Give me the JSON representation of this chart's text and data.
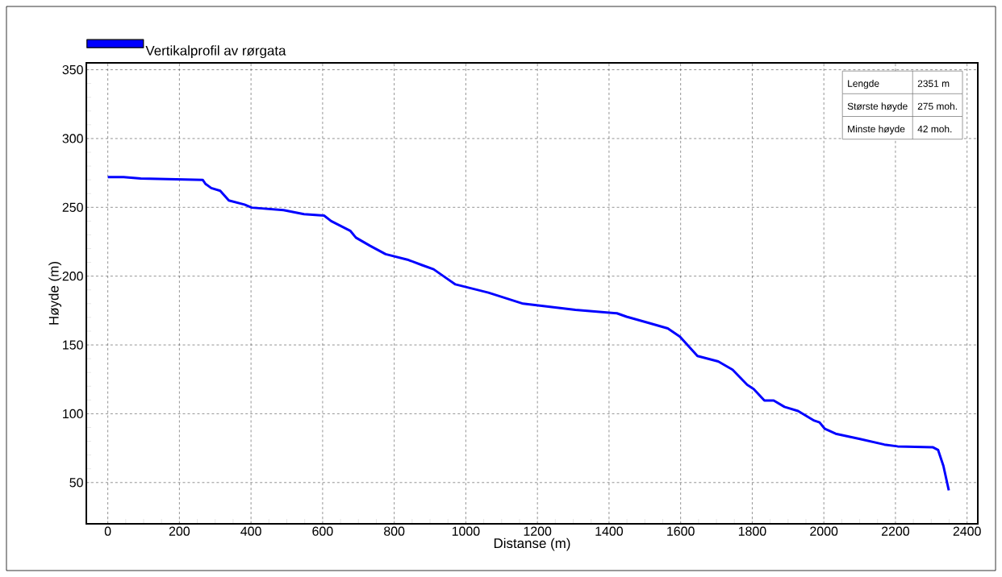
{
  "chart_data": {
    "type": "line",
    "xlabel": "Distanse (m)",
    "ylabel": "Høyde (m)",
    "xlim": [
      -60,
      2430
    ],
    "ylim": [
      20,
      355
    ],
    "xticks": [
      0,
      200,
      400,
      600,
      800,
      1000,
      1200,
      1400,
      1600,
      1800,
      2000,
      2200,
      2400
    ],
    "yticks": [
      50,
      100,
      150,
      200,
      250,
      300,
      350
    ],
    "grid": true,
    "legend": "top left",
    "annotations": [
      "Lengde",
      "2351 m",
      "Største høyde",
      "275 moh.",
      "Minste høyde",
      "42 moh."
    ],
    "series": [
      {
        "name": "Vertikalprofil av rørgata",
        "color": "#0000ff",
        "x": [
          0,
          44,
          92,
          265,
          273,
          289,
          314,
          338,
          382,
          402,
          491,
          548,
          604,
          624,
          677,
          693,
          733,
          776,
          837,
          878,
          910,
          943,
          971,
          1063,
          1160,
          1306,
          1422,
          1449,
          1511,
          1564,
          1598,
          1647,
          1705,
          1745,
          1786,
          1804,
          1834,
          1860,
          1890,
          1928,
          1973,
          1988,
          2003,
          2033,
          2101,
          2169,
          2206,
          2304,
          2319,
          2334,
          2349
        ],
        "values": [
          272,
          272,
          271,
          270,
          267,
          264,
          262,
          255,
          252,
          249.8,
          248,
          245,
          244,
          240,
          233,
          228,
          222,
          216,
          212,
          208,
          205,
          199,
          194,
          188,
          180,
          175.5,
          173,
          170.5,
          166,
          162,
          156,
          142,
          138,
          132,
          121,
          118,
          109.6,
          109.6,
          105,
          102,
          95,
          93.7,
          89,
          85.5,
          81.6,
          77.6,
          76.3,
          75.7,
          73.7,
          62,
          44.3
        ]
      }
    ]
  }
}
